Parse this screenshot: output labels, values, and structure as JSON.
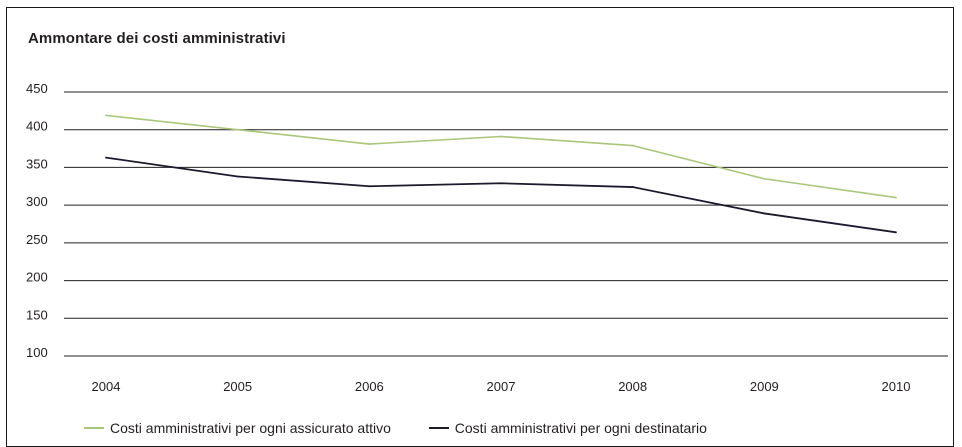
{
  "chart_data": {
    "type": "line",
    "title": "Ammontare dei costi amministrativi",
    "x": [
      "2004",
      "2005",
      "2006",
      "2007",
      "2008",
      "2009",
      "2010"
    ],
    "yticks": [
      "450",
      "400",
      "350",
      "300",
      "250",
      "200",
      "150",
      "100"
    ],
    "ylim": [
      100,
      450
    ],
    "grid": true,
    "legend_placement": "bottom",
    "series": [
      {
        "name": "Costi amministrativi per ogni assicurato attivo",
        "color": "#a8c77a",
        "values": [
          419,
          400,
          381,
          391,
          379,
          335,
          310
        ]
      },
      {
        "name": "Costi amministrativi per ogni destinatario",
        "color": "#1b1a2e",
        "values": [
          363,
          338,
          325,
          329,
          324,
          289,
          264
        ]
      }
    ]
  }
}
